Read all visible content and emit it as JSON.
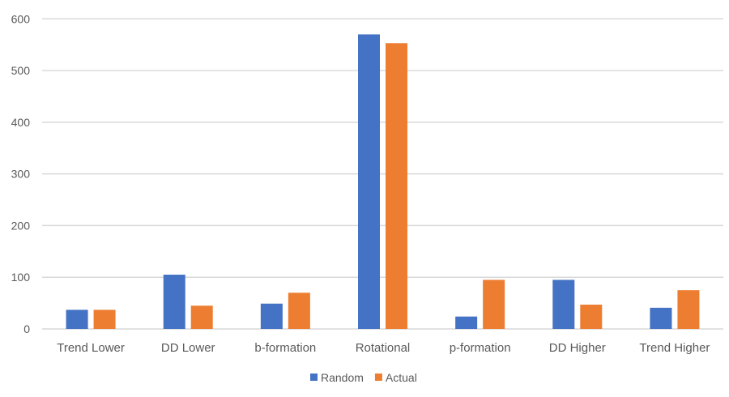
{
  "chart_data": {
    "type": "bar",
    "title": "",
    "xlabel": "",
    "ylabel": "",
    "categories": [
      "Trend Lower",
      "DD Lower",
      "b-formation",
      "Rotational",
      "p-formation",
      "DD Higher",
      "Trend Higher"
    ],
    "series": [
      {
        "name": "Random",
        "color": "#4472C4",
        "values": [
          37,
          105,
          49,
          570,
          24,
          95,
          41
        ]
      },
      {
        "name": "Actual",
        "color": "#ED7D31",
        "values": [
          37,
          45,
          70,
          553,
          95,
          47,
          75
        ]
      }
    ],
    "ylim": [
      0,
      600
    ],
    "yticks": [
      "0",
      "100",
      "200",
      "300",
      "400",
      "500",
      "600"
    ],
    "grid": true,
    "legend": "bottom"
  }
}
